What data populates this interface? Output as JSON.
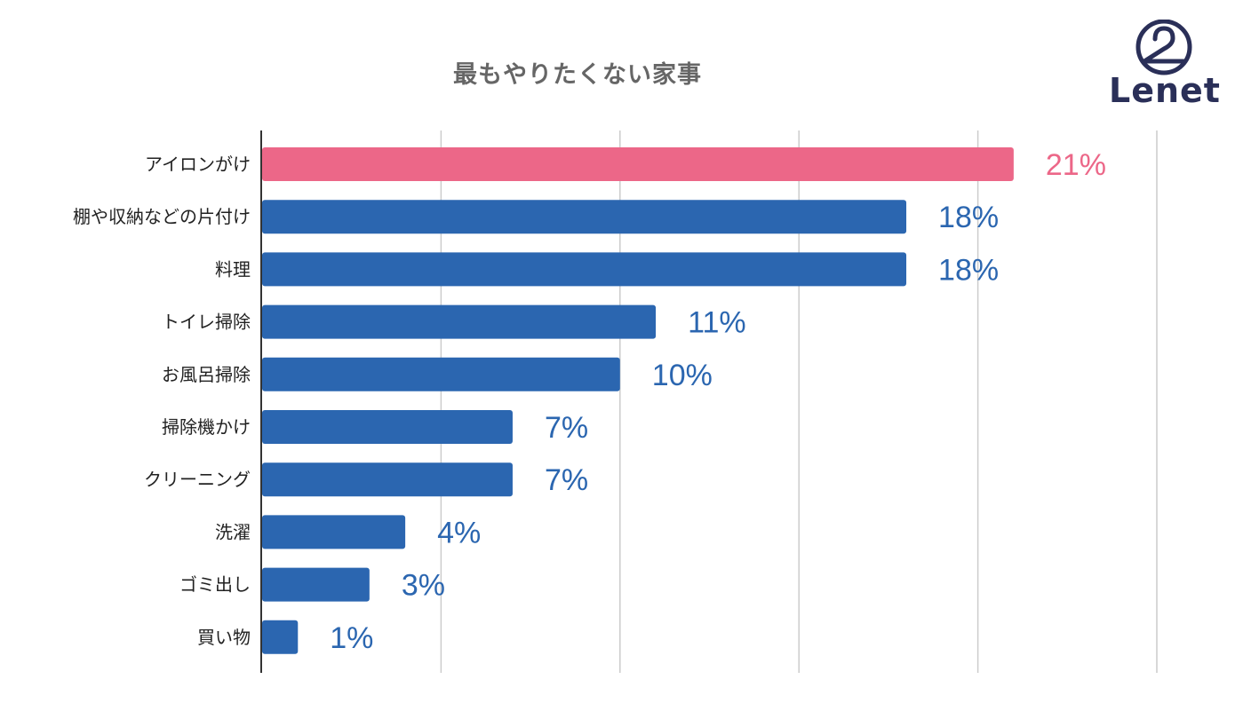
{
  "logo": {
    "icon": "hanger-icon",
    "text": "Lenet",
    "color": "#2a2f58"
  },
  "chart_data": {
    "type": "bar",
    "orientation": "horizontal",
    "title": "最もやりたくない家事",
    "xlabel": "",
    "ylabel": "",
    "xlim": [
      0,
      25
    ],
    "grid": true,
    "categories": [
      "アイロンがけ",
      "棚や収納などの片付け",
      "料理",
      "トイレ掃除",
      "お風呂掃除",
      "掃除機かけ",
      "クリーニング",
      "洗濯",
      "ゴミ出し",
      "買い物"
    ],
    "values": [
      21,
      18,
      18,
      11,
      10,
      7,
      7,
      4,
      3,
      1
    ],
    "data_labels": [
      "21%",
      "18%",
      "18%",
      "11%",
      "10%",
      "7%",
      "7%",
      "4%",
      "3%",
      "1%"
    ],
    "colors": {
      "highlight": "#ec6788",
      "default": "#2b66b0",
      "grid": "#cccccc",
      "axis": "#333333",
      "category_text": "#222222",
      "title": "#666666"
    },
    "highlight_index": 0
  }
}
